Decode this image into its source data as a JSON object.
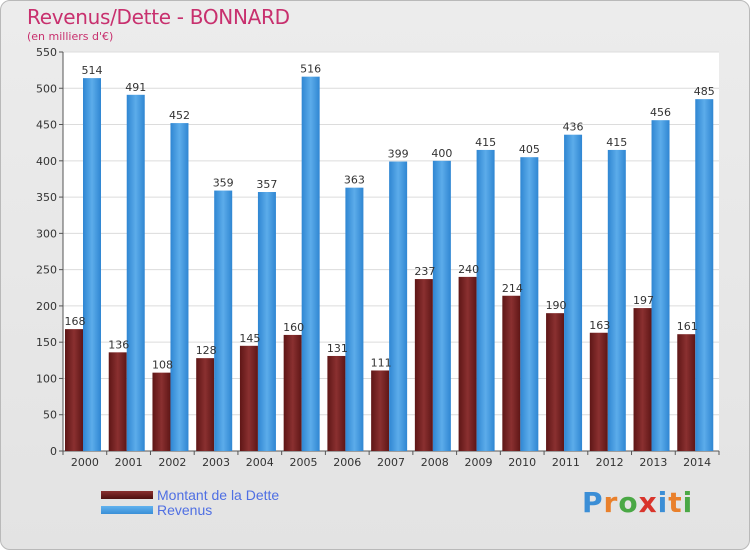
{
  "title": "Revenus/Dette - BONNARD",
  "subtitle": "(en milliers d'€)",
  "colors": {
    "debt": "#7d2828",
    "revenue": "#4a9ee2",
    "title": "#c8306e",
    "legend_text": "#4f6fe3"
  },
  "legend": {
    "debt_label": "Montant de la Dette",
    "revenue_label": "Revenus"
  },
  "logo": {
    "text": "Proxiti",
    "letter_colors": [
      "#3b8ed6",
      "#e9802b",
      "#4aa845",
      "#d9342b",
      "#3b8ed6",
      "#e9802b",
      "#4aa845"
    ]
  },
  "chart_data": {
    "type": "bar",
    "categories": [
      "2000",
      "2001",
      "2002",
      "2003",
      "2004",
      "2005",
      "2006",
      "2007",
      "2008",
      "2009",
      "2010",
      "2011",
      "2012",
      "2013",
      "2014"
    ],
    "series": [
      {
        "name": "Montant de la Dette",
        "values": [
          168,
          136,
          108,
          128,
          145,
          160,
          131,
          111,
          237,
          240,
          214,
          190,
          163,
          197,
          161
        ]
      },
      {
        "name": "Revenus",
        "values": [
          514,
          491,
          452,
          359,
          357,
          516,
          363,
          399,
          400,
          415,
          405,
          436,
          415,
          456,
          485
        ]
      }
    ],
    "ylim": [
      0,
      550
    ],
    "yticks": [
      0,
      50,
      100,
      150,
      200,
      250,
      300,
      350,
      400,
      450,
      500,
      550
    ],
    "grid": true
  }
}
